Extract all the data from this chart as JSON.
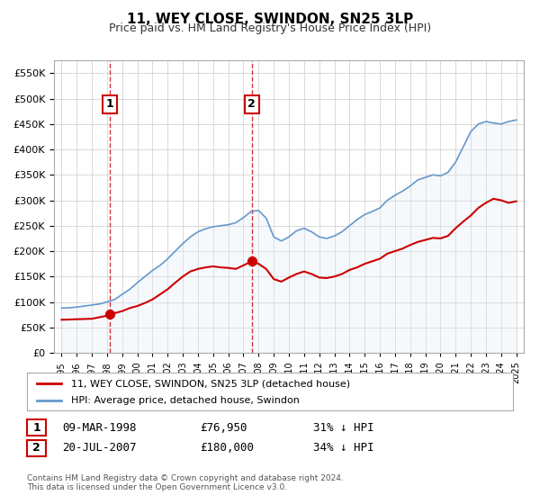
{
  "title": "11, WEY CLOSE, SWINDON, SN25 3LP",
  "subtitle": "Price paid vs. HM Land Registry's House Price Index (HPI)",
  "background_color": "#ffffff",
  "plot_bg_color": "#ffffff",
  "grid_color": "#cccccc",
  "hpi_shading_color": "#dce9f7",
  "sale1_date": 1998.19,
  "sale1_price": 76950,
  "sale1_label": "1",
  "sale2_date": 2007.55,
  "sale2_price": 180000,
  "sale2_label": "2",
  "legend_line1": "11, WEY CLOSE, SWINDON, SN25 3LP (detached house)",
  "legend_line2": "HPI: Average price, detached house, Swindon",
  "table_row1": [
    "1",
    "09-MAR-1998",
    "£76,950",
    "31% ↓ HPI"
  ],
  "table_row2": [
    "2",
    "20-JUL-2007",
    "£180,000",
    "34% ↓ HPI"
  ],
  "footnote": "Contains HM Land Registry data © Crown copyright and database right 2024.\nThis data is licensed under the Open Government Licence v3.0.",
  "xlim": [
    1994.5,
    2025.5
  ],
  "ylim": [
    0,
    575000
  ],
  "red_line_color": "#cc0000",
  "blue_line_color": "#6699cc",
  "dot_color": "#cc0000",
  "hpi_x": [
    1995,
    1995.5,
    1996,
    1996.5,
    1997,
    1997.5,
    1998,
    1998.5,
    1999,
    1999.5,
    2000,
    2000.5,
    2001,
    2001.5,
    2002,
    2002.5,
    2003,
    2003.5,
    2004,
    2004.5,
    2005,
    2005.5,
    2006,
    2006.5,
    2007,
    2007.5,
    2008,
    2008.5,
    2009,
    2009.5,
    2010,
    2010.5,
    2011,
    2011.5,
    2012,
    2012.5,
    2013,
    2013.5,
    2014,
    2014.5,
    2015,
    2015.5,
    2016,
    2016.5,
    2017,
    2017.5,
    2018,
    2018.5,
    2019,
    2019.5,
    2020,
    2020.5,
    2021,
    2021.5,
    2022,
    2022.5,
    2023,
    2023.5,
    2024,
    2024.5,
    2025
  ],
  "hpi_y": [
    88000,
    88500,
    90000,
    92000,
    94000,
    96000,
    100000,
    105000,
    115000,
    125000,
    138000,
    150000,
    162000,
    172000,
    185000,
    200000,
    215000,
    228000,
    238000,
    244000,
    248000,
    250000,
    252000,
    256000,
    266000,
    278000,
    280000,
    265000,
    228000,
    220000,
    228000,
    240000,
    245000,
    238000,
    228000,
    225000,
    230000,
    238000,
    250000,
    262000,
    272000,
    278000,
    285000,
    300000,
    310000,
    318000,
    328000,
    340000,
    345000,
    350000,
    348000,
    355000,
    375000,
    405000,
    435000,
    450000,
    455000,
    452000,
    450000,
    455000,
    458000
  ],
  "price_x": [
    1995,
    1995.5,
    1996,
    1996.5,
    1997,
    1997.5,
    1998,
    1998.19,
    1998.5,
    1999,
    1999.5,
    2000,
    2000.5,
    2001,
    2001.5,
    2002,
    2002.5,
    2003,
    2003.5,
    2004,
    2004.5,
    2005,
    2005.5,
    2006,
    2006.5,
    2007,
    2007.55,
    2008,
    2008.5,
    2009,
    2009.5,
    2010,
    2010.5,
    2011,
    2011.5,
    2012,
    2012.5,
    2013,
    2013.5,
    2014,
    2014.5,
    2015,
    2015.5,
    2016,
    2016.5,
    2017,
    2017.5,
    2018,
    2018.5,
    2019,
    2019.5,
    2020,
    2020.5,
    2021,
    2021.5,
    2022,
    2022.5,
    2023,
    2023.5,
    2024,
    2024.5,
    2025
  ],
  "price_y": [
    65000,
    65500,
    66000,
    66500,
    67000,
    70000,
    73000,
    76950,
    78000,
    82000,
    88000,
    92000,
    98000,
    105000,
    115000,
    125000,
    138000,
    150000,
    160000,
    165000,
    168000,
    170000,
    168000,
    167000,
    165000,
    172000,
    180000,
    175000,
    165000,
    145000,
    140000,
    148000,
    155000,
    160000,
    155000,
    148000,
    147000,
    150000,
    155000,
    163000,
    168000,
    175000,
    180000,
    185000,
    195000,
    200000,
    205000,
    212000,
    218000,
    222000,
    226000,
    225000,
    230000,
    245000,
    258000,
    270000,
    285000,
    295000,
    303000,
    300000,
    295000,
    298000
  ]
}
